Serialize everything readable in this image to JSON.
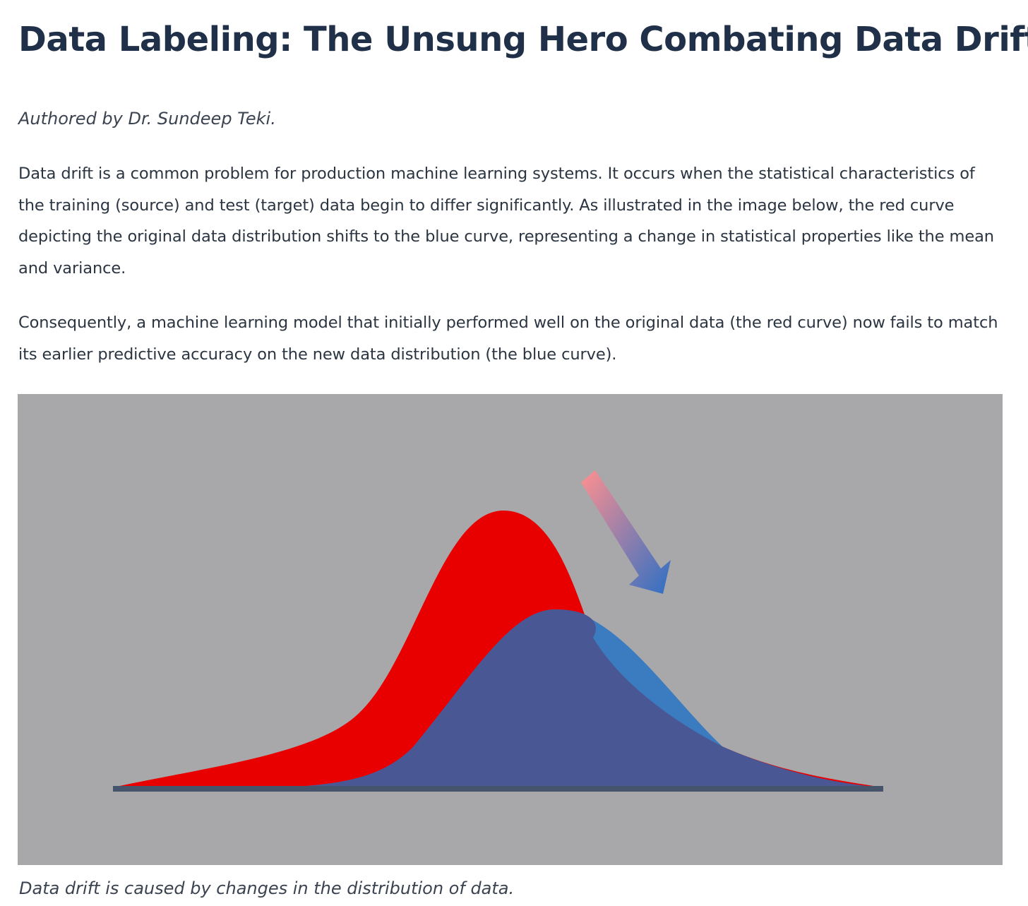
{
  "article": {
    "title": "Data Labeling: The Unsung Hero Combating Data Drift",
    "byline": "Authored by Dr. Sundeep Teki.",
    "paragraphs": [
      "Data drift is a common problem for production machine learning systems. It occurs when the statistical characteristics of the training (source) and test (target) data begin to differ significantly. As illustrated in the image below, the red curve depicting the original data distribution shifts to the blue curve, representing a change in statistical properties like the mean and variance.",
      "Consequently, a machine learning model that initially performed well on the original data (the red curve) now fails to match its earlier predictive accuracy on the new data distribution (the blue curve)."
    ],
    "figure": {
      "caption": "Data drift is caused by changes in the distribution of data.",
      "background_color": "#a8a8aa",
      "original_curve_color": "#e80000",
      "shifted_curve_color": "#4a5795",
      "shifted_curve_overlap_color": "#3a7cbf",
      "baseline_color": "#45536b",
      "arrow_gradient": [
        "#ff9090",
        "#2e6fc4"
      ],
      "arrow_direction": "down-right"
    }
  }
}
